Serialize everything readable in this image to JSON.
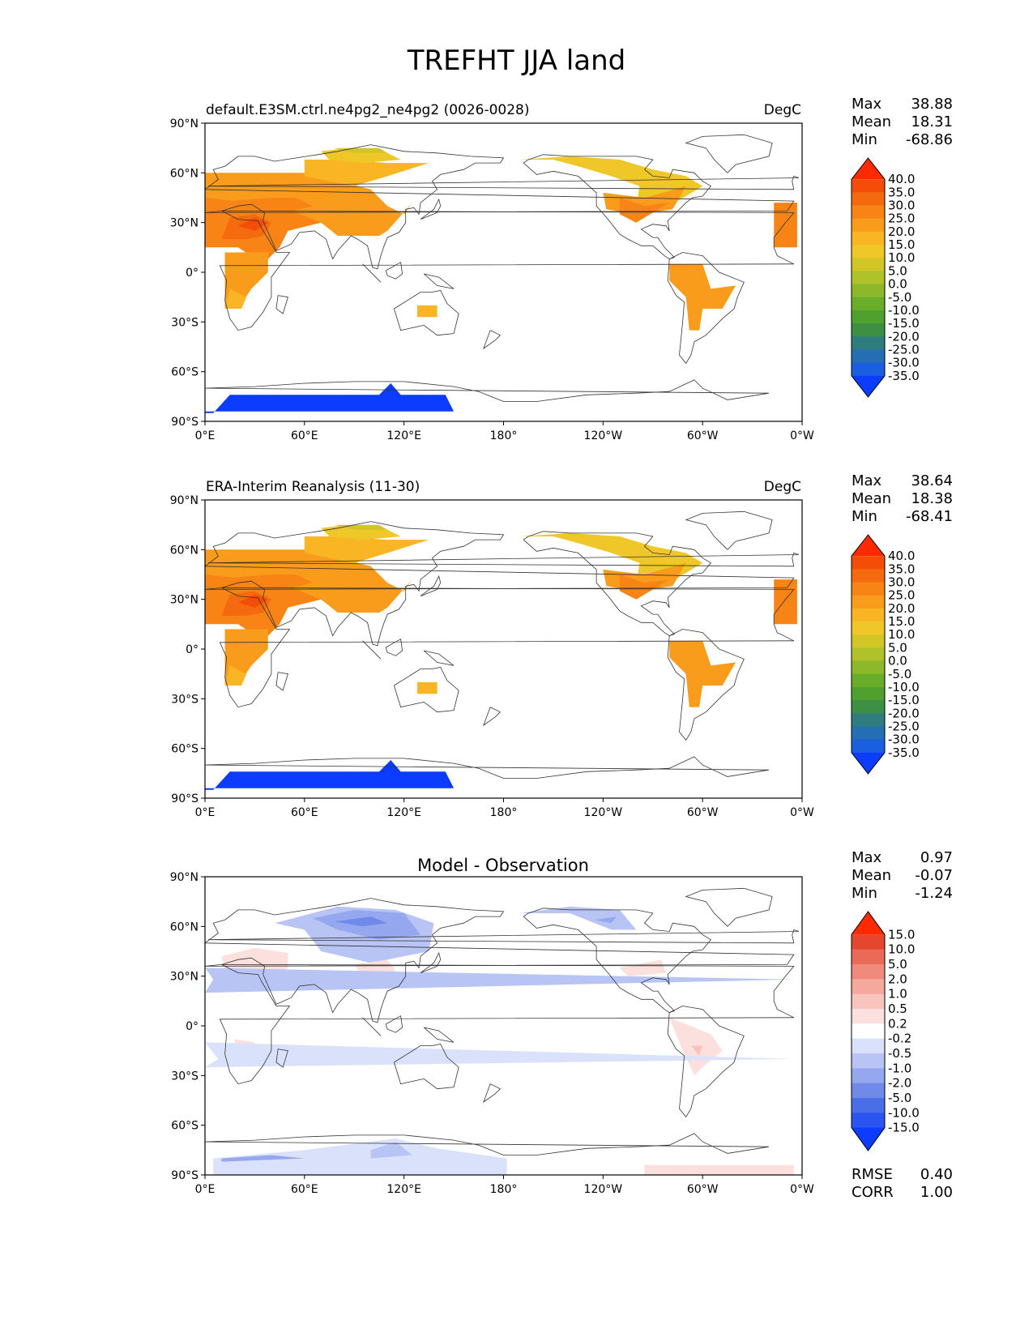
{
  "title": "TREFHT JJA land",
  "axes": {
    "lat_labels": [
      "90°N",
      "60°N",
      "30°N",
      "0°",
      "30°S",
      "60°S",
      "90°S"
    ],
    "lon_labels": [
      "0°E",
      "60°E",
      "120°E",
      "180°",
      "120°W",
      "60°W",
      "0°W"
    ]
  },
  "colors": {
    "warm_scale": [
      "#0b3cff",
      "#1a5fe0",
      "#256eb4",
      "#2f7c7e",
      "#3d8f43",
      "#4fa02c",
      "#6aad28",
      "#8cb829",
      "#b0c22a",
      "#d1c625",
      "#f0c728",
      "#f9b524",
      "#f99c1b",
      "#f88415",
      "#f56a0e",
      "#f34d08",
      "#ff2a00"
    ],
    "diff_scale": [
      "#0b3cff",
      "#2a55f0",
      "#4a6ee8",
      "#6f8ae8",
      "#95a7ee",
      "#b8c5f4",
      "#dae2fb",
      "#ffffff",
      "#fbe0dd",
      "#f8c4bd",
      "#f5a89c",
      "#f08a7c",
      "#ea6a58",
      "#e4472e",
      "#ff2a00"
    ]
  },
  "panels": [
    {
      "name": "test",
      "title_left": "default.E3SM.ctrl.ne4pg2_ne4pg2 (0026-0028)",
      "units": "DegC",
      "title_center": "",
      "stats": [
        {
          "label": "Max",
          "value": "38.88"
        },
        {
          "label": "Mean",
          "value": "18.31"
        },
        {
          "label": "Min",
          "value": "-68.86"
        }
      ],
      "colorbar_labels": [
        "40.0",
        "35.0",
        "30.0",
        "25.0",
        "20.0",
        "15.0",
        "10.0",
        "5.0",
        "0.0",
        "-5.0",
        "-10.0",
        "-15.0",
        "-20.0",
        "-25.0",
        "-30.0",
        "-35.0"
      ],
      "footer": []
    },
    {
      "name": "reference",
      "title_left": "ERA-Interim Reanalysis (11-30)",
      "units": "DegC",
      "title_center": "",
      "stats": [
        {
          "label": "Max",
          "value": "38.64"
        },
        {
          "label": "Mean",
          "value": "18.38"
        },
        {
          "label": "Min",
          "value": "-68.41"
        }
      ],
      "colorbar_labels": [
        "40.0",
        "35.0",
        "30.0",
        "25.0",
        "20.0",
        "15.0",
        "10.0",
        "5.0",
        "0.0",
        "-5.0",
        "-10.0",
        "-15.0",
        "-20.0",
        "-25.0",
        "-30.0",
        "-35.0"
      ],
      "footer": []
    },
    {
      "name": "difference",
      "title_left": "",
      "units": "",
      "title_center": "Model - Observation",
      "stats": [
        {
          "label": "Max",
          "value": "0.97"
        },
        {
          "label": "Mean",
          "value": "-0.07"
        },
        {
          "label": "Min",
          "value": "-1.24"
        }
      ],
      "colorbar_labels": [
        "15.0",
        "10.0",
        "5.0",
        "2.0",
        "1.0",
        "0.5",
        "0.2",
        "-0.2",
        "-0.5",
        "-1.0",
        "-2.0",
        "-5.0",
        "-10.0",
        "-15.0"
      ],
      "footer": [
        {
          "label": "RMSE",
          "value": "0.40"
        },
        {
          "label": "CORR",
          "value": "1.00"
        }
      ]
    }
  ]
}
